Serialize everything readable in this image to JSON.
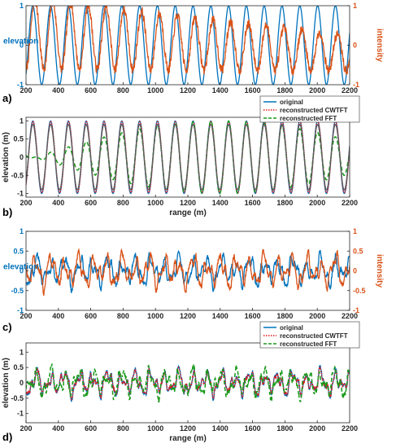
{
  "colors": {
    "blue": "#0072BD",
    "orange": "#D95319",
    "red": "#E41A1C",
    "green": "#1A9A1A",
    "gray": "#5A5A5A",
    "axis": "#262626"
  },
  "chart_data": [
    {
      "panel_label": "a)",
      "type": "line",
      "xlim": [
        200,
        2200
      ],
      "xticks": [
        200,
        400,
        600,
        800,
        1000,
        1200,
        1400,
        1600,
        1800,
        2000,
        2200
      ],
      "ylabel": "elevation",
      "ylim": [
        -1,
        1
      ],
      "yticks": [
        -1,
        0,
        1
      ],
      "y2label": "intensity",
      "y2lim": [
        -1,
        1
      ],
      "y2ticks": [
        -1,
        0,
        1
      ],
      "series": [
        {
          "axis": "left",
          "color": "blue",
          "kind": "sine",
          "amplitude": 1,
          "wavelength": 110,
          "phase_x": 242
        },
        {
          "axis": "right",
          "color": "orange",
          "kind": "noisy_sine",
          "wavelength": 110,
          "phase_x": 255,
          "amplitude_start": 0.9,
          "amplitude_end": 0.45,
          "offset_start": 0.3,
          "offset_end": -0.2,
          "noise": 0.12
        }
      ]
    },
    {
      "panel_label": "b)",
      "type": "line",
      "xlim": [
        200,
        2200
      ],
      "xticks": [
        200,
        400,
        600,
        800,
        1000,
        1200,
        1400,
        1600,
        1800,
        2000,
        2200
      ],
      "xlabel": "range (m)",
      "ylabel": "elevation (m)",
      "ylim": [
        -1.1,
        1.1
      ],
      "yticks": [
        -1,
        -0.5,
        0,
        0.5,
        1
      ],
      "legend": {
        "position": "top-right",
        "entries": [
          "original",
          "reconstructed CWTFT",
          "reconstructed FFT"
        ]
      },
      "series": [
        {
          "name": "original",
          "color": "blue",
          "style": "solid",
          "kind": "sine",
          "amplitude": 1,
          "wavelength": 110,
          "phase_x": 242
        },
        {
          "name": "reconstructed CWTFT",
          "color": "red",
          "style": "dotted",
          "kind": "sine",
          "amplitude": 0.98,
          "wavelength": 110,
          "phase_x": 243
        },
        {
          "name": "reconstructed FFT",
          "color": "green",
          "style": "dashed",
          "kind": "beat",
          "amplitude": 1,
          "wavelength": 110,
          "phase_x": 242,
          "beat_period": 2300,
          "beat_x": 1400
        },
        {
          "color": "gray",
          "style": "solid",
          "kind": "sine",
          "amplitude": 0.9,
          "wavelength": 110,
          "phase_x": 242
        }
      ]
    },
    {
      "panel_label": "c)",
      "type": "line",
      "xlim": [
        200,
        2200
      ],
      "xticks": [
        200,
        400,
        600,
        800,
        1000,
        1200,
        1400,
        1600,
        1800,
        2000,
        2200
      ],
      "ylabel": "elevation",
      "ylim": [
        -1,
        1
      ],
      "yticks": [
        -1,
        -0.5,
        0,
        0.5,
        1
      ],
      "y2label": "intensity",
      "y2lim": [
        -1,
        1
      ],
      "y2ticks": [
        -1,
        -0.5,
        0,
        0.5,
        1
      ],
      "series": [
        {
          "axis": "left",
          "color": "blue",
          "kind": "random",
          "amplitude": 0.5,
          "seed": 11
        },
        {
          "axis": "right",
          "color": "orange",
          "kind": "random",
          "amplitude": 0.55,
          "seed": 29
        }
      ]
    },
    {
      "panel_label": "d)",
      "type": "line",
      "xlim": [
        200,
        2200
      ],
      "xticks": [
        200,
        400,
        600,
        800,
        1000,
        1200,
        1400,
        1600,
        1800,
        2000,
        2200
      ],
      "xlabel": "range (m)",
      "ylabel": "elevation (m)",
      "ylim": [
        -1.3,
        1.3
      ],
      "yticks": [
        -1,
        -0.5,
        0,
        0.5,
        1
      ],
      "legend": {
        "position": "top-right",
        "entries": [
          "original",
          "reconstructed CWTFT",
          "reconstructed FFT"
        ]
      },
      "series": [
        {
          "name": "original",
          "color": "blue",
          "style": "solid",
          "kind": "random",
          "amplitude": 0.55,
          "seed": 11
        },
        {
          "name": "reconstructed CWTFT",
          "color": "red",
          "style": "dotted",
          "kind": "random",
          "amplitude": 0.5,
          "seed": 11
        },
        {
          "name": "reconstructed FFT",
          "color": "green",
          "style": "dashed",
          "kind": "random",
          "amplitude": 0.6,
          "seed": 13
        }
      ]
    }
  ]
}
